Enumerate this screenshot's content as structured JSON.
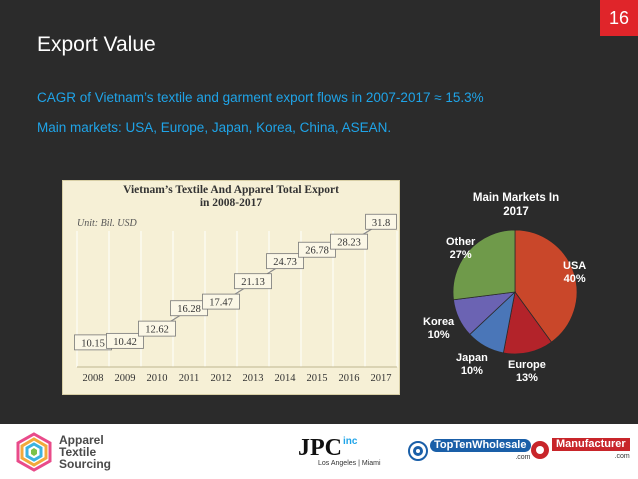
{
  "slide": {
    "page_number": "16",
    "title": "Export Value",
    "line1": "CAGR of Vietnam’s textile and garment export flows in 2007-2017 ≈ 15.3%",
    "line2": "Main markets: USA, Europe, Japan, Korea, China, ASEAN."
  },
  "line_chart": {
    "title_line1": "Vietnam’s Textile And Apparel  Total Export",
    "title_line2": "in 2008-2017",
    "unit": "Unit: Bil. USD"
  },
  "pie": {
    "title_line1": "Main Markets In",
    "title_line2": "2017",
    "labels": [
      {
        "name": "USA",
        "pct": "40%"
      },
      {
        "name": "Europe",
        "pct": "13%"
      },
      {
        "name": "Japan",
        "pct": "10%"
      },
      {
        "name": "Korea",
        "pct": "10%"
      },
      {
        "name": "Other",
        "pct": "27%"
      }
    ]
  },
  "footer": {
    "brand1_line1": "Apparel",
    "brand1_line2": "Textile",
    "brand1_line3": "Sourcing",
    "brand2": "JPC",
    "brand2_sup": "inc",
    "brand2_sub": "Los Angeles | Miami",
    "brand3": "TopTenWholesale",
    "brand3_sub": ".com",
    "brand4": "Manufacturer",
    "brand4_sub": ".com"
  },
  "colors": {
    "accent_blue": "#1fa4e8",
    "badge_red": "#e0252a",
    "usa": "#c9472a",
    "europe": "#b3232a",
    "japan": "#4a76b8",
    "korea": "#6b63b3",
    "other": "#6f9a4a"
  },
  "chart_data": [
    {
      "type": "line",
      "title": "Vietnam’s Textile And Apparel  Total Export in 2008-2017",
      "unit": "Unit: Bil. USD",
      "x": [
        "2008",
        "2009",
        "2010",
        "2011",
        "2012",
        "2013",
        "2014",
        "2015",
        "2016",
        "2017"
      ],
      "y": [
        10.15,
        10.42,
        12.62,
        16.28,
        17.47,
        21.13,
        24.73,
        26.78,
        28.23,
        31.8
      ],
      "ylim": [
        6,
        34
      ],
      "grid": true
    },
    {
      "type": "pie",
      "title": "Main Markets In 2017",
      "categories": [
        "USA",
        "Europe",
        "Japan",
        "Korea",
        "Other"
      ],
      "values": [
        40,
        13,
        10,
        10,
        27
      ]
    }
  ]
}
